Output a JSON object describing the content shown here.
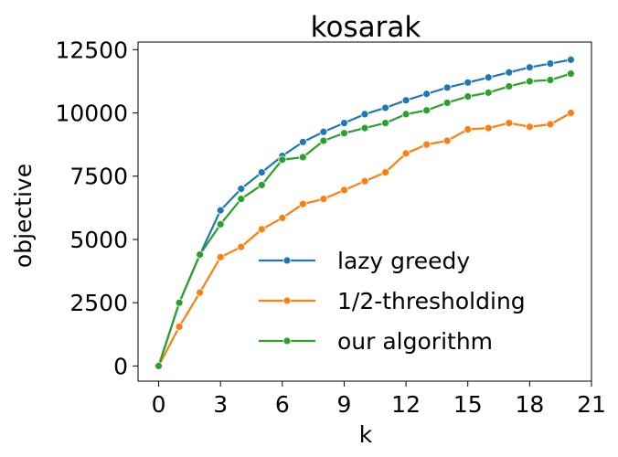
{
  "chart_data": {
    "type": "line",
    "title": "kosarak",
    "xlabel": "k",
    "ylabel": "objective",
    "xlim": [
      -1,
      21
    ],
    "ylim": [
      -600,
      12800
    ],
    "xticks": [
      0,
      3,
      6,
      9,
      12,
      15,
      18,
      21
    ],
    "yticks": [
      0,
      2500,
      5000,
      7500,
      10000,
      12500
    ],
    "grid": false,
    "legend_position": "lower-right",
    "x": [
      0,
      1,
      2,
      3,
      4,
      5,
      6,
      7,
      8,
      9,
      10,
      11,
      12,
      13,
      14,
      15,
      16,
      17,
      18,
      19,
      20
    ],
    "series": [
      {
        "name": "lazy greedy",
        "color": "#1f77b4",
        "values": [
          0,
          2500,
          4400,
          6150,
          7000,
          7650,
          8300,
          8850,
          9250,
          9600,
          9950,
          10200,
          10500,
          10750,
          11000,
          11200,
          11400,
          11600,
          11800,
          11950,
          12100
        ]
      },
      {
        "name": "1/2-thresholding",
        "color": "#ff7f0e",
        "values": [
          0,
          1550,
          2900,
          4300,
          4700,
          5400,
          5850,
          6400,
          6600,
          6950,
          7300,
          7650,
          8400,
          8750,
          8900,
          9350,
          9400,
          9600,
          9450,
          9550,
          10000
        ]
      },
      {
        "name": "our algorithm",
        "color": "#2ca02c",
        "values": [
          0,
          2500,
          4400,
          5600,
          6600,
          7150,
          8150,
          8250,
          8900,
          9200,
          9400,
          9600,
          9950,
          10100,
          10400,
          10650,
          10800,
          11050,
          11250,
          11300,
          11550
        ]
      }
    ]
  }
}
